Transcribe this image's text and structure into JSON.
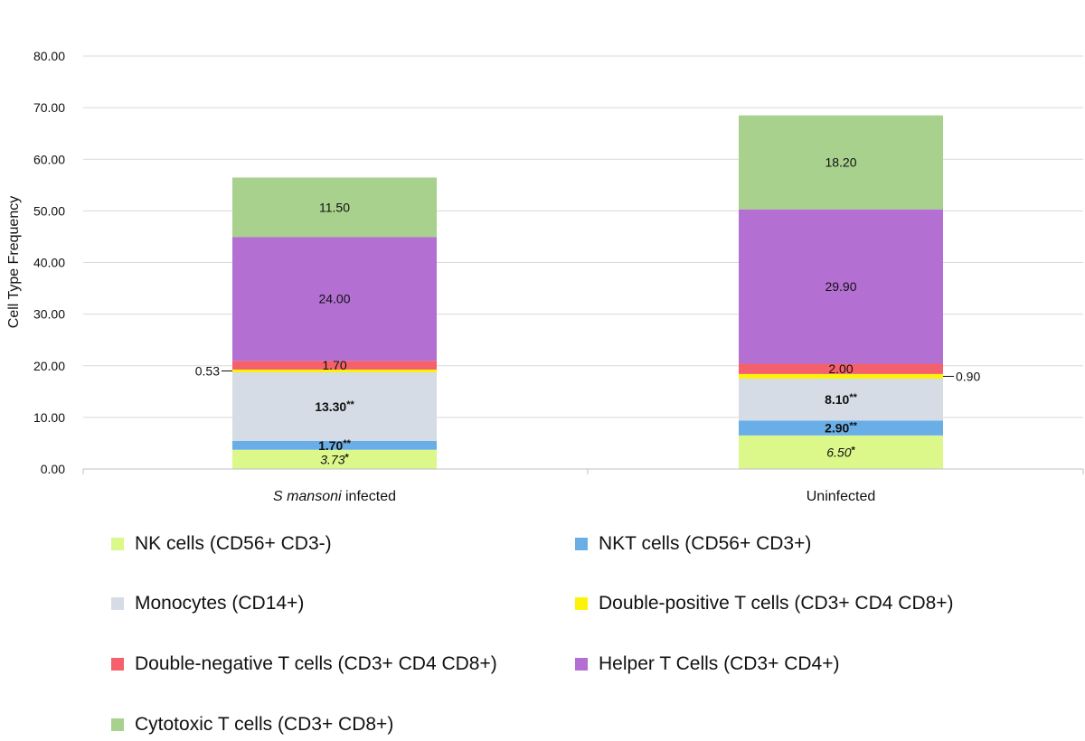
{
  "chart_data": {
    "type": "bar",
    "stacked": true,
    "ylabel": "Cell Type Frequency",
    "xlabel": "",
    "ylim": [
      0,
      80
    ],
    "yticks": [
      "0.00",
      "10.00",
      "20.00",
      "30.00",
      "40.00",
      "50.00",
      "60.00",
      "70.00",
      "80.00"
    ],
    "grid": true,
    "legend_position": "bottom",
    "categories": [
      {
        "prefix_italic": "S mansoni",
        "suffix": " infected"
      },
      {
        "prefix_italic": "",
        "suffix": "Uninfected"
      }
    ],
    "series": [
      {
        "name": "NK cells  (CD56+ CD3-)",
        "color": "#dcf78a",
        "values": [
          3.73,
          6.5
        ],
        "labels": [
          "3.73",
          "6.50"
        ],
        "marks": [
          "*",
          "*"
        ],
        "label_style": "italic"
      },
      {
        "name": "NKT cells (CD56+ CD3+)",
        "color": "#6aaee8",
        "values": [
          1.7,
          2.9
        ],
        "labels": [
          "1.70",
          "2.90"
        ],
        "marks": [
          "**",
          "**"
        ],
        "label_style": "bold"
      },
      {
        "name": "Monocytes (CD14+)",
        "color": "#d5dce5",
        "values": [
          13.3,
          8.1
        ],
        "labels": [
          "13.30",
          "8.10"
        ],
        "marks": [
          "**",
          "**"
        ],
        "label_style": "bold"
      },
      {
        "name": "Double-positive T cells (CD3+ CD4 CD8+)",
        "color": "#fdf20a",
        "values": [
          0.53,
          0.9
        ],
        "labels": [
          "0.53",
          "0.90"
        ],
        "marks": [
          "",
          ""
        ],
        "label_style": "outside"
      },
      {
        "name": "Double-negative T cells (CD3+ CD4 CD8+)",
        "color": "#f4606c",
        "values": [
          1.7,
          2.0
        ],
        "labels": [
          "1.70",
          "2.00"
        ],
        "marks": [
          "",
          ""
        ],
        "label_style": "normal"
      },
      {
        "name": "Helper T Cells (CD3+ CD4+)",
        "color": "#b46fd3",
        "values": [
          24.0,
          29.9
        ],
        "labels": [
          "24.00",
          "29.90"
        ],
        "marks": [
          "",
          ""
        ],
        "label_style": "normal"
      },
      {
        "name": "Cytotoxic T cells (CD3+ CD8+)",
        "color": "#a8d18e",
        "values": [
          11.5,
          18.2
        ],
        "labels": [
          "11.50",
          "18.20"
        ],
        "marks": [
          "",
          ""
        ],
        "label_style": "normal"
      }
    ]
  }
}
